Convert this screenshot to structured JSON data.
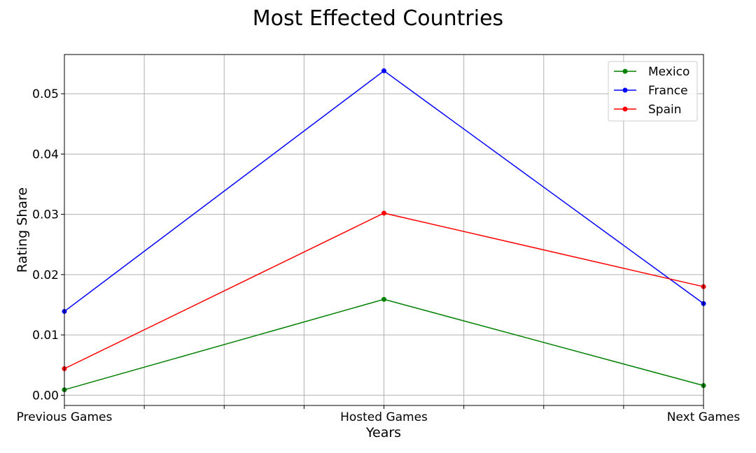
{
  "chart_data": {
    "type": "line",
    "title": "Most Effected Countries",
    "xlabel": "Years",
    "ylabel": "Rating Share",
    "categories": [
      "Previous Games",
      "Hosted Games",
      "Next Games"
    ],
    "ylim": [
      -0.0017,
      0.0565
    ],
    "yticks": [
      "0.00",
      "0.01",
      "0.02",
      "0.03",
      "0.04",
      "0.05"
    ],
    "ytick_values": [
      0.0,
      0.01,
      0.02,
      0.03,
      0.04,
      0.05
    ],
    "grid": true,
    "legend_position": "top-right",
    "series": [
      {
        "name": "Mexico",
        "color": "#008000",
        "values": [
          0.0009,
          0.0159,
          0.0016
        ]
      },
      {
        "name": "France",
        "color": "#0000ff",
        "values": [
          0.0139,
          0.0538,
          0.0152
        ]
      },
      {
        "name": "Spain",
        "color": "#ff0000",
        "values": [
          0.0044,
          0.0302,
          0.018
        ]
      }
    ]
  }
}
